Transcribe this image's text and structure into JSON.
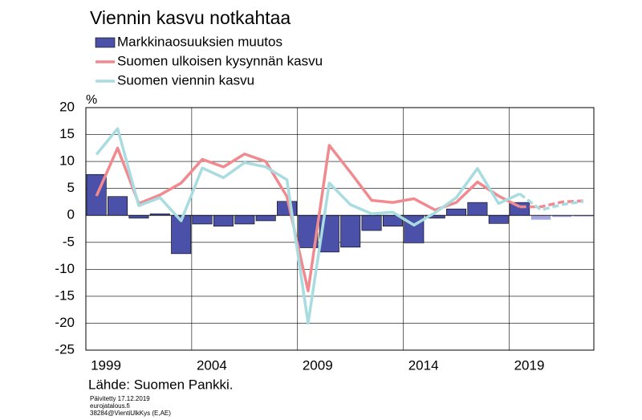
{
  "chart_data": {
    "type": "bar_line",
    "title": "Viennin kasvu notkahtaa",
    "y_unit": "%",
    "source": "Lähde: Suomen Pankki.",
    "footer": [
      "Päivitetty 17.12.2019",
      "eurojatalous.fi",
      "38284@VientiUlkKys (E,AE)"
    ],
    "categories": [
      "1999",
      null,
      null,
      null,
      null,
      "2004",
      null,
      null,
      null,
      null,
      "2009",
      null,
      null,
      null,
      null,
      "2014",
      null,
      null,
      null,
      null,
      "2019",
      null,
      null,
      null
    ],
    "forecast_from": "2019",
    "series": [
      {
        "name": "Markkinaosuuksien muutos",
        "kind": "bar",
        "color": "#4b50a8",
        "forecast_color": "#a3a6e0",
        "values": [
          7.6,
          3.5,
          -0.5,
          0.3,
          -7.1,
          -1.6,
          -2,
          -1.6,
          -1,
          2.6,
          -6,
          -6.8,
          -5.9,
          -2.8,
          -2,
          -5.1,
          -0.5,
          1.2,
          2.4,
          -1.5,
          2.4,
          -0.8,
          -0.3,
          -0.2
        ]
      },
      {
        "name": "Suomen ulkoisen kysynnän kasvu",
        "kind": "line",
        "color": "#f08a8f",
        "values": [
          3.6,
          12.5,
          2.2,
          3.8,
          6,
          10.4,
          9,
          11.4,
          10,
          3.5,
          -14,
          13,
          8,
          2.8,
          2.4,
          3.1,
          1,
          2.4,
          6.2,
          3.6,
          1.6,
          1.6,
          2.5,
          2.7
        ]
      },
      {
        "name": "Suomen viennin kasvu",
        "kind": "line",
        "color": "#a9dce0",
        "values": [
          11.3,
          16.1,
          1.8,
          3.3,
          -1,
          8.8,
          7,
          9.8,
          9,
          6.6,
          -20,
          6,
          2,
          0.3,
          0.6,
          -1.8,
          0.5,
          3.3,
          8.7,
          2.2,
          4,
          1,
          2,
          2.6
        ]
      }
    ],
    "ylim": [
      -25,
      20
    ],
    "yticks": [
      -25,
      -20,
      -15,
      -10,
      -5,
      0,
      5,
      10,
      15,
      20
    ],
    "grid": true
  }
}
